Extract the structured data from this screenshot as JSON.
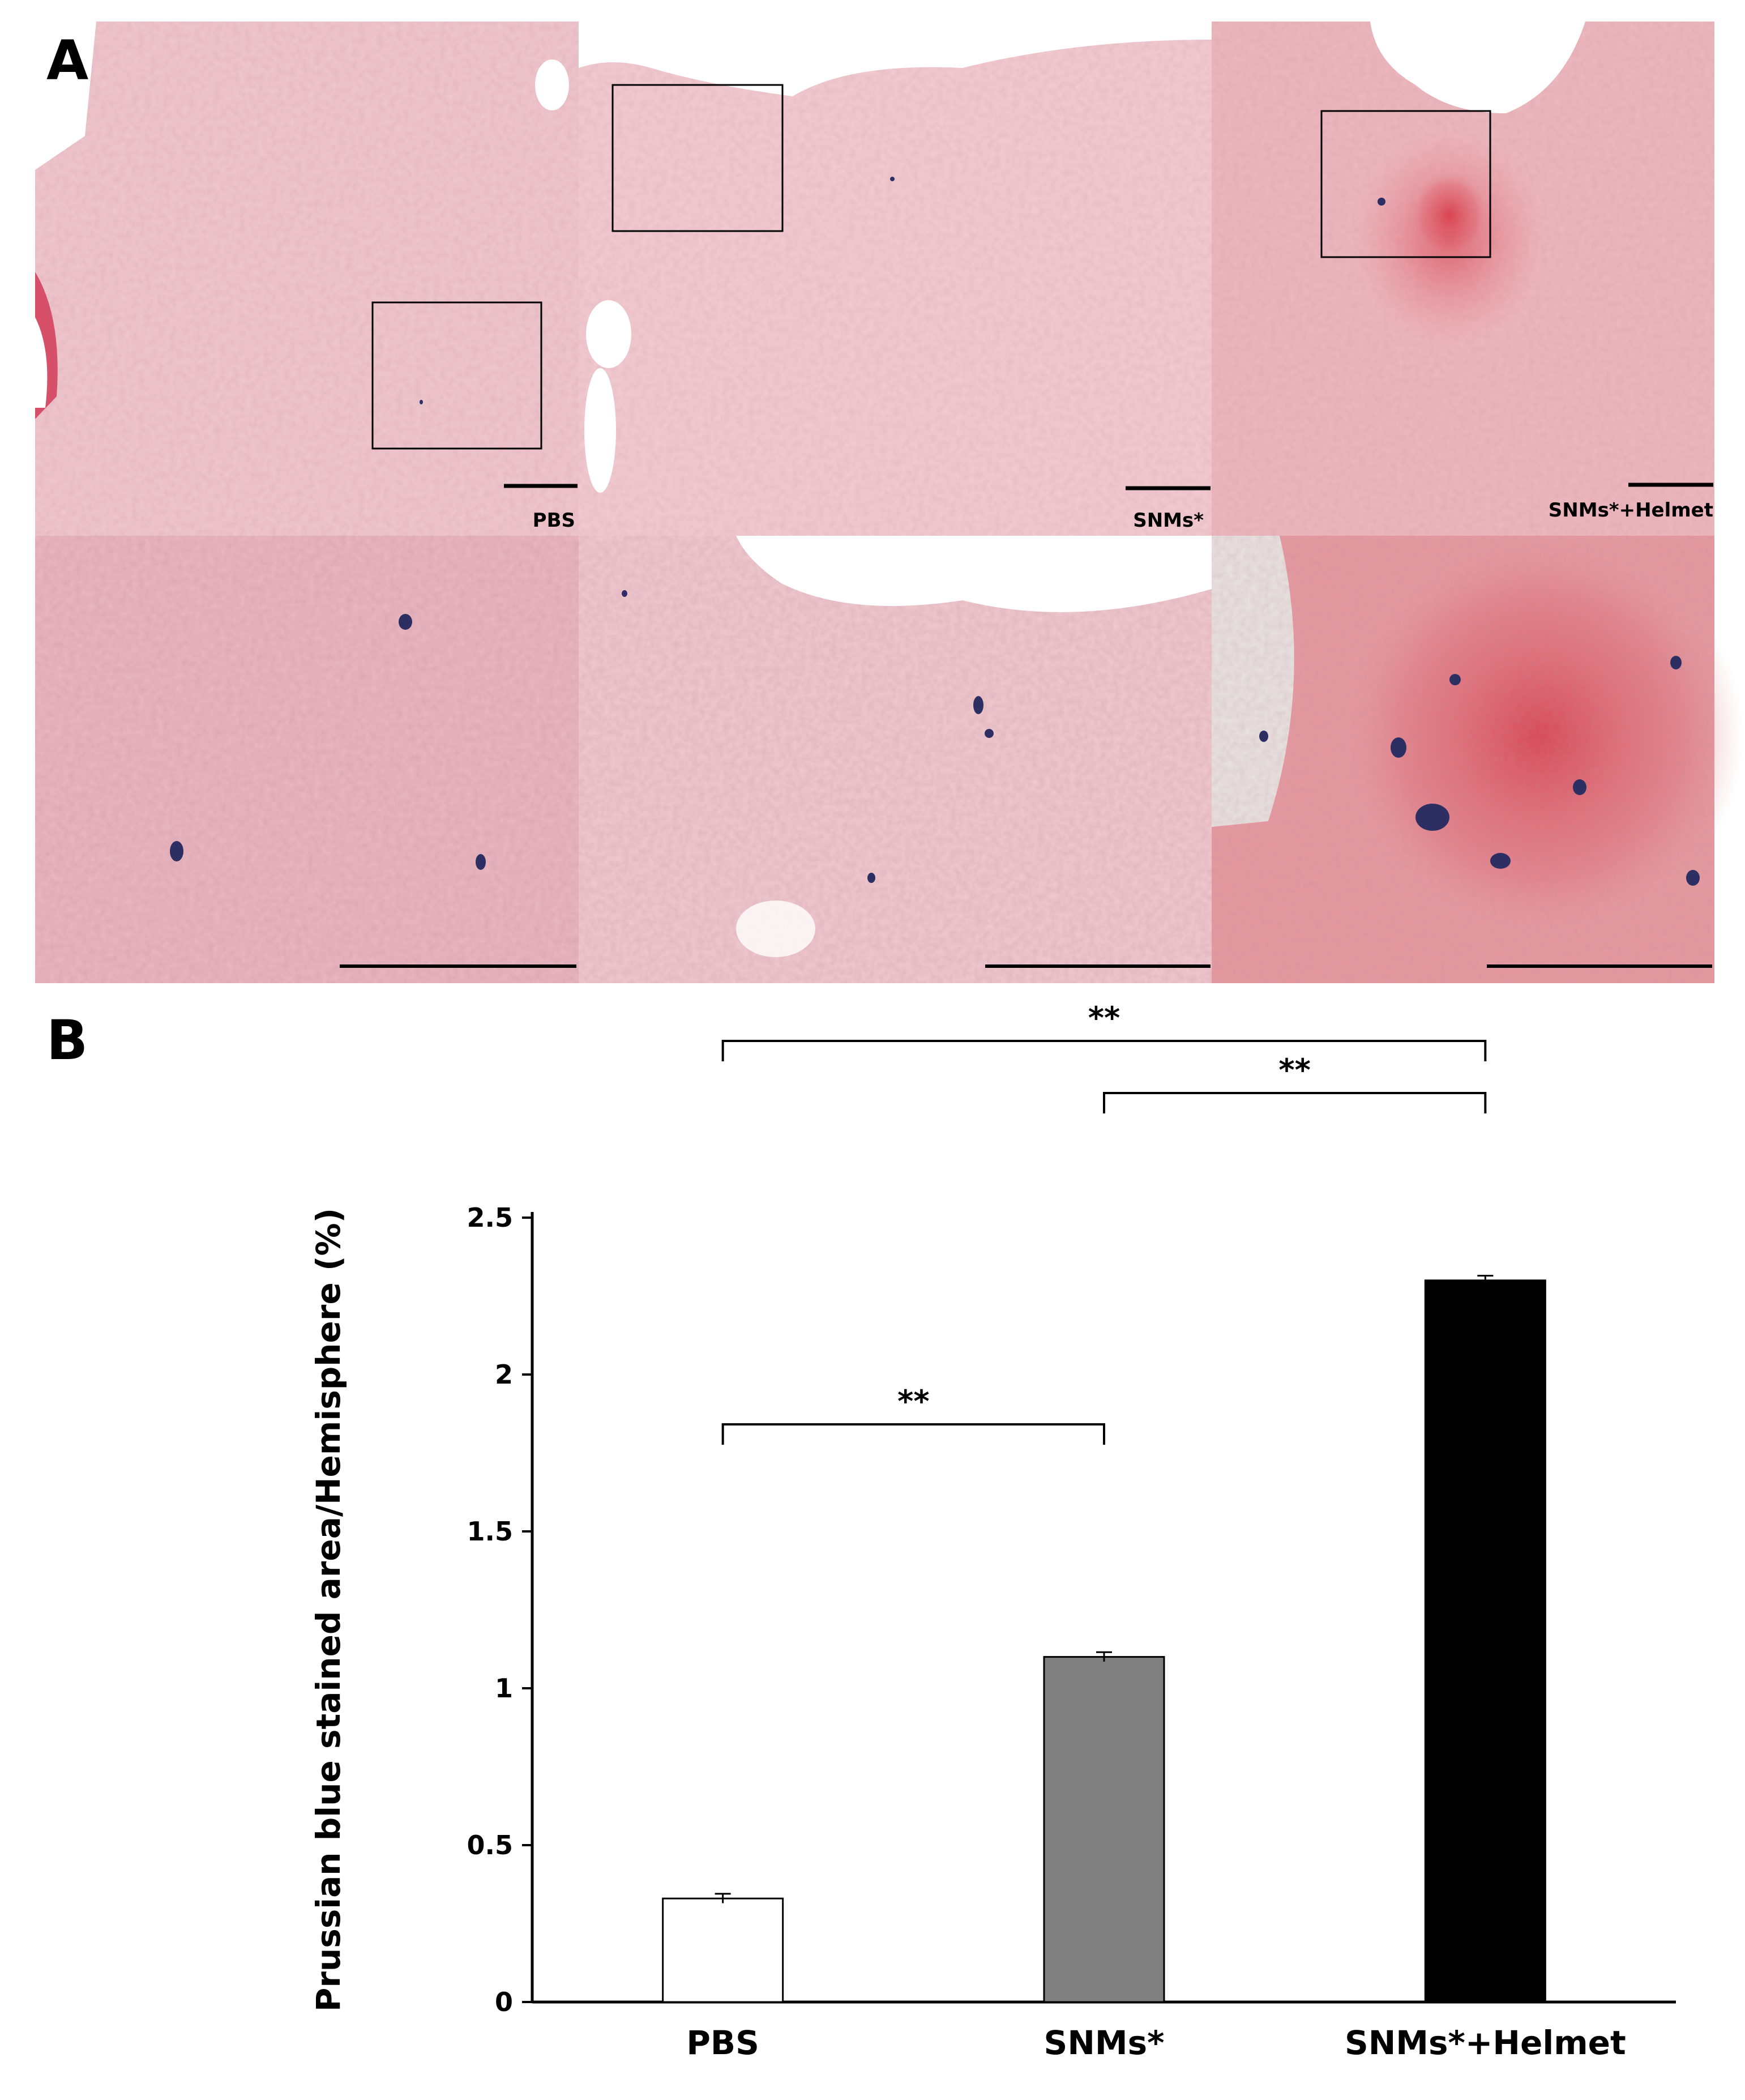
{
  "panel_a": {
    "letter": "A",
    "columns": [
      {
        "label": "PBS",
        "tint": "#f1c9cf"
      },
      {
        "label": "SNMs*",
        "tint": "#f3cdd2"
      },
      {
        "label": "SNMs*+Helmet",
        "tint": "#eeb9bf"
      }
    ],
    "zoom_tints": [
      "#eab9c2",
      "#f0cbd0",
      "#e69aa0"
    ],
    "stain_color": "#2d2f62"
  },
  "panel_b": {
    "letter": "B"
  },
  "chart_data": {
    "type": "bar",
    "categories": [
      "PBS",
      "SNMs*",
      "SNMs*+Helmet"
    ],
    "values": [
      0.33,
      1.1,
      2.3
    ],
    "errors": [
      0.015,
      0.015,
      0.015
    ],
    "bar_colors": [
      "#ffffff",
      "#808080",
      "#000000"
    ],
    "title": "",
    "xlabel": "",
    "ylabel": "Prussian blue stained area/Hemisphere  (%)",
    "ylim": [
      0,
      2.5
    ],
    "yticks": [
      "0",
      "0.5",
      "1",
      "1.5",
      "2",
      "2.5"
    ],
    "ytick_values": [
      0,
      0.5,
      1,
      1.5,
      2,
      2.5
    ],
    "significance": [
      {
        "from": 0,
        "to": 1,
        "label": "**"
      },
      {
        "from": 1,
        "to": 2,
        "label": "**"
      },
      {
        "from": 0,
        "to": 2,
        "label": "**"
      }
    ],
    "grid": false,
    "legend": "none"
  }
}
